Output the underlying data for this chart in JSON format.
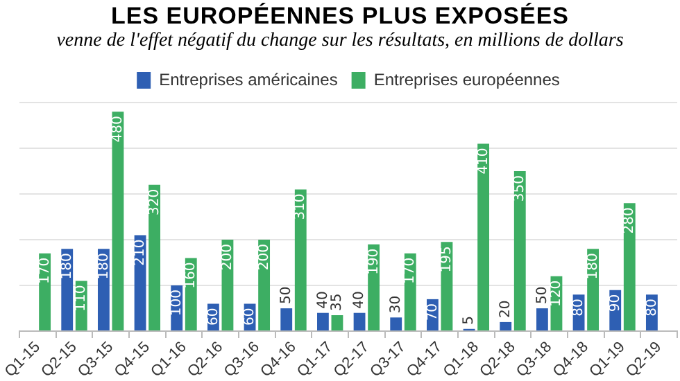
{
  "chart_data": {
    "type": "bar",
    "title": "LES EUROPÉENNES PLUS EXPOSÉES",
    "subtitle": "venne de l'effet négatif du change sur les résultats, en millions de dollars",
    "categories": [
      "Q1-15",
      "Q2-15",
      "Q3-15",
      "Q4-15",
      "Q1-16",
      "Q2-16",
      "Q3-16",
      "Q4-16",
      "Q1-17",
      "Q2-17",
      "Q3-17",
      "Q4-17",
      "Q1-18",
      "Q2-18",
      "Q3-18",
      "Q4-18",
      "Q1-19",
      "Q2-19"
    ],
    "series": [
      {
        "name": "Entreprises américaines",
        "color": "#2e5fb3",
        "values": [
          null,
          180,
          180,
          210,
          100,
          60,
          60,
          50,
          40,
          40,
          30,
          70,
          5,
          20,
          50,
          80,
          90,
          80
        ]
      },
      {
        "name": "Entreprises européennes",
        "color": "#3dae63",
        "values": [
          170,
          110,
          480,
          320,
          160,
          200,
          200,
          310,
          35,
          190,
          170,
          195,
          410,
          350,
          120,
          180,
          280,
          null
        ]
      }
    ],
    "ylim": [
      0,
      500
    ],
    "yticks": [
      {
        "value": 0,
        "label": null
      },
      {
        "value": 100,
        "label": null
      },
      {
        "value": 200,
        "label": null
      },
      {
        "value": 300,
        "label": null
      },
      {
        "value": 400,
        "label": null
      },
      {
        "value": 500,
        "label": null
      }
    ],
    "tick_labels": "x",
    "grid": "y",
    "legend": "top",
    "data_labels": true
  }
}
